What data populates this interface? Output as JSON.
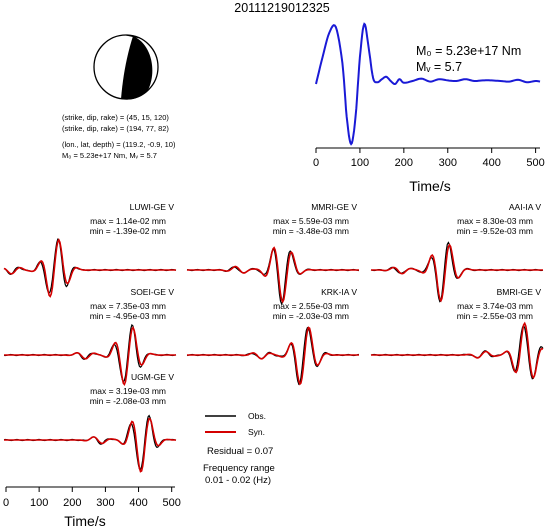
{
  "event_id": "20111219012325",
  "beachball": {
    "nodal_plane_1": "(strike, dip, rake) = (45, 15, 120)",
    "nodal_plane_2": "(strike, dip, rake) = (194, 77, 82)",
    "location": "(lon., lat, depth) = (119.2, -0.9, 10)",
    "moment": "M₀ = 5.23e+17 Nm, Mᵥ = 5.7",
    "colors": {
      "compression": "#000000",
      "dilatation": "#ffffff"
    }
  },
  "stf": {
    "m0_label": "M₀ = 5.23e+17 Nm",
    "mw_label": "Mᵥ = 5.7",
    "xlabel": "Time/s",
    "xticks": [
      "0",
      "100",
      "200",
      "300",
      "400",
      "500"
    ],
    "color": "#1a1ad6"
  },
  "waveform_xaxis": {
    "xlabel": "Time/s",
    "xticks": [
      "0",
      "100",
      "200",
      "300",
      "400",
      "500"
    ]
  },
  "legend": {
    "obs": "Obs.",
    "syn": "Syn.",
    "obs_color": "#000000",
    "syn_color": "#d40000",
    "residual": "Residual = 0.07",
    "freq_label": "Frequency range",
    "freq_range": "0.01 - 0.02 (Hz)"
  },
  "stations": [
    {
      "name": "LUWI-GE V",
      "max": "max = 1.14e-02 mm",
      "min": "min = -1.39e-02 mm"
    },
    {
      "name": "MMRI-GE V",
      "max": "max = 5.59e-03 mm",
      "min": "min = -3.48e-03 mm"
    },
    {
      "name": "AAI-IA V",
      "max": "max = 8.30e-03 mm",
      "min": "min = -9.52e-03 mm"
    },
    {
      "name": "SOEI-GE V",
      "max": "max = 7.35e-03 mm",
      "min": "min = -4.95e-03 mm"
    },
    {
      "name": "KRK-IA V",
      "max": "max = 2.55e-03 mm",
      "min": "min = -2.03e-03 mm"
    },
    {
      "name": "BMRI-GE V",
      "max": "max = 3.74e-03 mm",
      "min": "min = -2.55e-03 mm"
    },
    {
      "name": "UGM-GE V",
      "max": "max = 3.19e-03 mm",
      "min": "min = -2.08e-03 mm"
    }
  ],
  "chart_data": [
    {
      "type": "line",
      "title": "",
      "xlabel": "Time/s",
      "ylabel": "",
      "xlim": [
        0,
        510
      ],
      "series": [
        {
          "x": [
            0,
            15,
            30,
            45,
            60,
            70,
            80,
            90,
            100,
            110,
            120,
            130,
            140,
            150,
            160,
            170,
            180,
            190,
            200,
            220,
            240,
            260,
            280,
            300,
            320,
            340,
            360,
            380,
            400,
            420,
            440,
            460,
            480,
            500,
            510
          ],
          "values": [
            0.0,
            0.45,
            0.85,
            0.95,
            0.35,
            -0.55,
            -1.0,
            -0.55,
            0.45,
            1.0,
            0.6,
            0.1,
            0.03,
            0.08,
            0.12,
            0.05,
            0.0,
            0.08,
            0.02,
            0.05,
            0.09,
            0.04,
            0.08,
            0.06,
            0.05,
            0.08,
            0.05,
            0.06,
            0.06,
            0.05,
            0.04,
            0.07,
            0.03,
            0.05,
            0.04
          ]
        }
      ]
    }
  ]
}
